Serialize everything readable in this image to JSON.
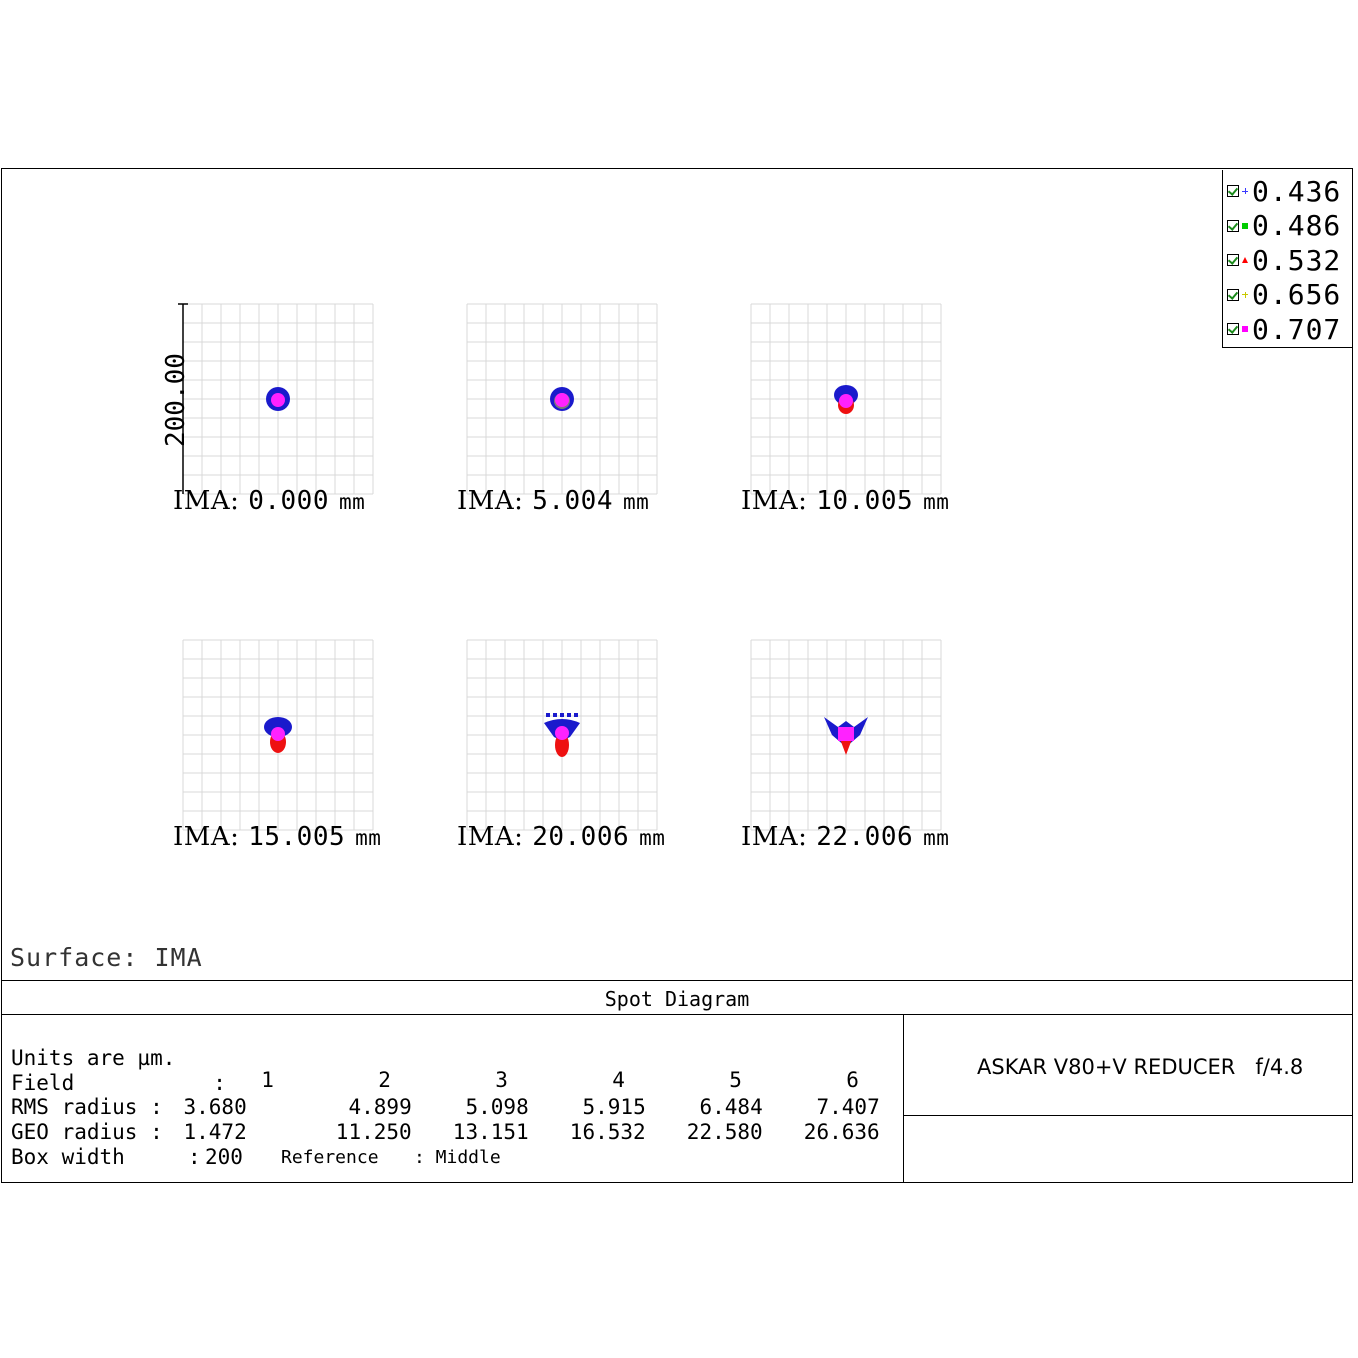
{
  "chart_data": {
    "type": "scatter",
    "title": "Spot Diagram",
    "surface": "Surface: IMA",
    "axis_label": "200.00",
    "legend": {
      "entries": [
        {
          "label": "0.436",
          "color": "#3a3aff",
          "marker": "plus"
        },
        {
          "label": "0.486",
          "color": "#00cc00",
          "marker": "square"
        },
        {
          "label": "0.532",
          "color": "#ff0000",
          "marker": "triangle"
        },
        {
          "label": "0.656",
          "color": "#c8c800",
          "marker": "plus"
        },
        {
          "label": "0.707",
          "color": "#ff00ff",
          "marker": "square"
        }
      ]
    },
    "fields": [
      {
        "ima_prefix": "IMA:",
        "value": "0.000",
        "unit": "mm",
        "shape": "round",
        "centroid_offset_um": 0
      },
      {
        "ima_prefix": "IMA:",
        "value": "5.004",
        "unit": "mm",
        "shape": "round",
        "centroid_offset_um": 0
      },
      {
        "ima_prefix": "IMA:",
        "value": "10.005",
        "unit": "mm",
        "shape": "coma-small",
        "centroid_offset_um": 0
      },
      {
        "ima_prefix": "IMA:",
        "value": "15.005",
        "unit": "mm",
        "shape": "coma-medium",
        "centroid_offset_um": 0
      },
      {
        "ima_prefix": "IMA:",
        "value": "20.006",
        "unit": "mm",
        "shape": "coma-large",
        "centroid_offset_um": 0
      },
      {
        "ima_prefix": "IMA:",
        "value": "22.006",
        "unit": "mm",
        "shape": "coma-xlarge",
        "centroid_offset_um": 0
      }
    ],
    "box_width_um": 200,
    "colors": {
      "blue": "#1a1acc",
      "red": "#ee1111",
      "magenta": "#ff22ff",
      "grid": "#d8d8d8"
    }
  },
  "info": {
    "units_line": "Units are µm.",
    "field_label": "Field           :",
    "field_numbers": [
      "1",
      "2",
      "3",
      "4",
      "5",
      "6"
    ],
    "rms_label": "RMS radius :",
    "rms_values": [
      "3.680",
      "4.899",
      "5.098",
      "5.915",
      "6.484",
      "7.407"
    ],
    "geo_label": "GEO radius :",
    "geo_values": [
      "1.472",
      "11.250",
      "13.151",
      "16.532",
      "22.580",
      "26.636"
    ],
    "box_label": "Box width     :",
    "box_value": "200",
    "reference_label": "Reference",
    "reference_value": ": Middle"
  },
  "system_name": "ASKAR V80+V REDUCER   f/4.8"
}
